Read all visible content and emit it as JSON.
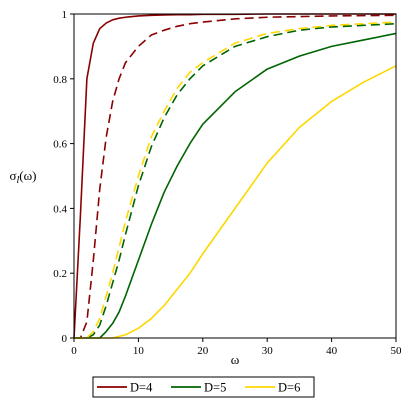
{
  "chart_data": {
    "type": "line",
    "xlabel": "ω",
    "ylabel_main": "σ",
    "ylabel_sub": "l",
    "ylabel_arg": "(ω)",
    "xlim": [
      0,
      50
    ],
    "ylim": [
      0,
      1
    ],
    "x_ticks": [
      0,
      10,
      20,
      30,
      40,
      50
    ],
    "y_ticks": [
      0,
      0.2,
      0.4,
      0.6,
      0.8,
      1
    ],
    "x_tick_labels": [
      "0",
      "10",
      "20",
      "30",
      "40",
      "50"
    ],
    "y_tick_labels": [
      "0",
      "0.2",
      "0.4",
      "0.6",
      "0.8",
      "1"
    ],
    "grid": false,
    "legend_position": "bottom",
    "legend": [
      {
        "label": "D=4",
        "color": "#8b0000"
      },
      {
        "label": "D=5",
        "color": "#006400"
      },
      {
        "label": "D=6",
        "color": "#ffd700"
      }
    ],
    "x": [
      0,
      1,
      2,
      3,
      4,
      5,
      6,
      7,
      8,
      10,
      12,
      14,
      16,
      18,
      20,
      25,
      30,
      35,
      40,
      45,
      50
    ],
    "series": [
      {
        "group": "D=4",
        "style": "solid",
        "color": "#8b0000",
        "values": [
          0,
          0.38,
          0.8,
          0.91,
          0.955,
          0.972,
          0.982,
          0.987,
          0.99,
          0.994,
          0.996,
          0.997,
          0.998,
          0.998,
          0.999,
          0.999,
          1.0,
          1.0,
          1.0,
          1.0,
          1.0
        ]
      },
      {
        "group": "D=4",
        "style": "dashed",
        "color": "#8b0000",
        "values": [
          0,
          0.0,
          0.05,
          0.24,
          0.46,
          0.62,
          0.73,
          0.8,
          0.85,
          0.9,
          0.935,
          0.95,
          0.962,
          0.97,
          0.975,
          0.985,
          0.99,
          0.992,
          0.994,
          0.995,
          0.996
        ]
      },
      {
        "group": "D=5",
        "style": "solid",
        "color": "#006400",
        "values": [
          0,
          0.0,
          0.0,
          0.0,
          0.0,
          0.02,
          0.045,
          0.08,
          0.13,
          0.24,
          0.35,
          0.45,
          0.53,
          0.6,
          0.66,
          0.76,
          0.83,
          0.87,
          0.9,
          0.92,
          0.94
        ]
      },
      {
        "group": "D=5",
        "style": "dashed",
        "color": "#006400",
        "values": [
          0,
          0.0,
          0.0,
          0.01,
          0.04,
          0.1,
          0.17,
          0.24,
          0.32,
          0.47,
          0.59,
          0.68,
          0.75,
          0.8,
          0.84,
          0.9,
          0.93,
          0.95,
          0.96,
          0.965,
          0.97
        ]
      },
      {
        "group": "D=6",
        "style": "solid",
        "color": "#ffd700",
        "values": [
          0,
          0.0,
          0.0,
          0.0,
          0.0,
          0.0,
          0.0,
          0.005,
          0.01,
          0.03,
          0.06,
          0.1,
          0.15,
          0.2,
          0.26,
          0.4,
          0.54,
          0.65,
          0.73,
          0.79,
          0.84
        ]
      },
      {
        "group": "D=6",
        "style": "dashed",
        "color": "#ffd700",
        "values": [
          0,
          0.0,
          0.0,
          0.02,
          0.06,
          0.13,
          0.2,
          0.28,
          0.36,
          0.5,
          0.62,
          0.7,
          0.77,
          0.82,
          0.85,
          0.91,
          0.94,
          0.955,
          0.965,
          0.97,
          0.975
        ]
      }
    ]
  }
}
